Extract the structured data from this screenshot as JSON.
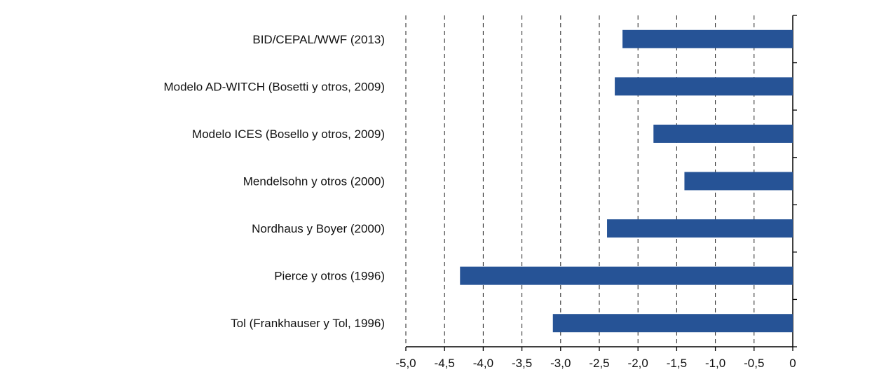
{
  "chart_data": {
    "type": "bar",
    "orientation": "horizontal",
    "categories": [
      "BID/CEPAL/WWF (2013)",
      "Modelo AD-WITCH (Bosetti y otros, 2009)",
      "Modelo ICES (Bosello y otros, 2009)",
      "Mendelsohn y otros (2000)",
      "Nordhaus y Boyer (2000)",
      "Pierce y otros (1996)",
      "Tol (Frankhauser y Tol, 1996)"
    ],
    "values": [
      -2.2,
      -2.3,
      -1.8,
      -1.4,
      -2.4,
      -4.3,
      -3.1
    ],
    "xlim": [
      -5,
      0
    ],
    "xticks": [
      -5,
      -4.5,
      -4,
      -3.5,
      -3,
      -2.5,
      -2,
      -1.5,
      -1,
      -0.5,
      0
    ],
    "xtick_labels": [
      "-5,0",
      "-4,5",
      "-4,0",
      "-3,5",
      "-3,0",
      "-2,5",
      "-2,0",
      "-1,5",
      "-1,0",
      "-0,5",
      "0"
    ],
    "grid": "vertical dashed",
    "bar_color": "#265396",
    "title": "",
    "xlabel": "",
    "ylabel": ""
  }
}
